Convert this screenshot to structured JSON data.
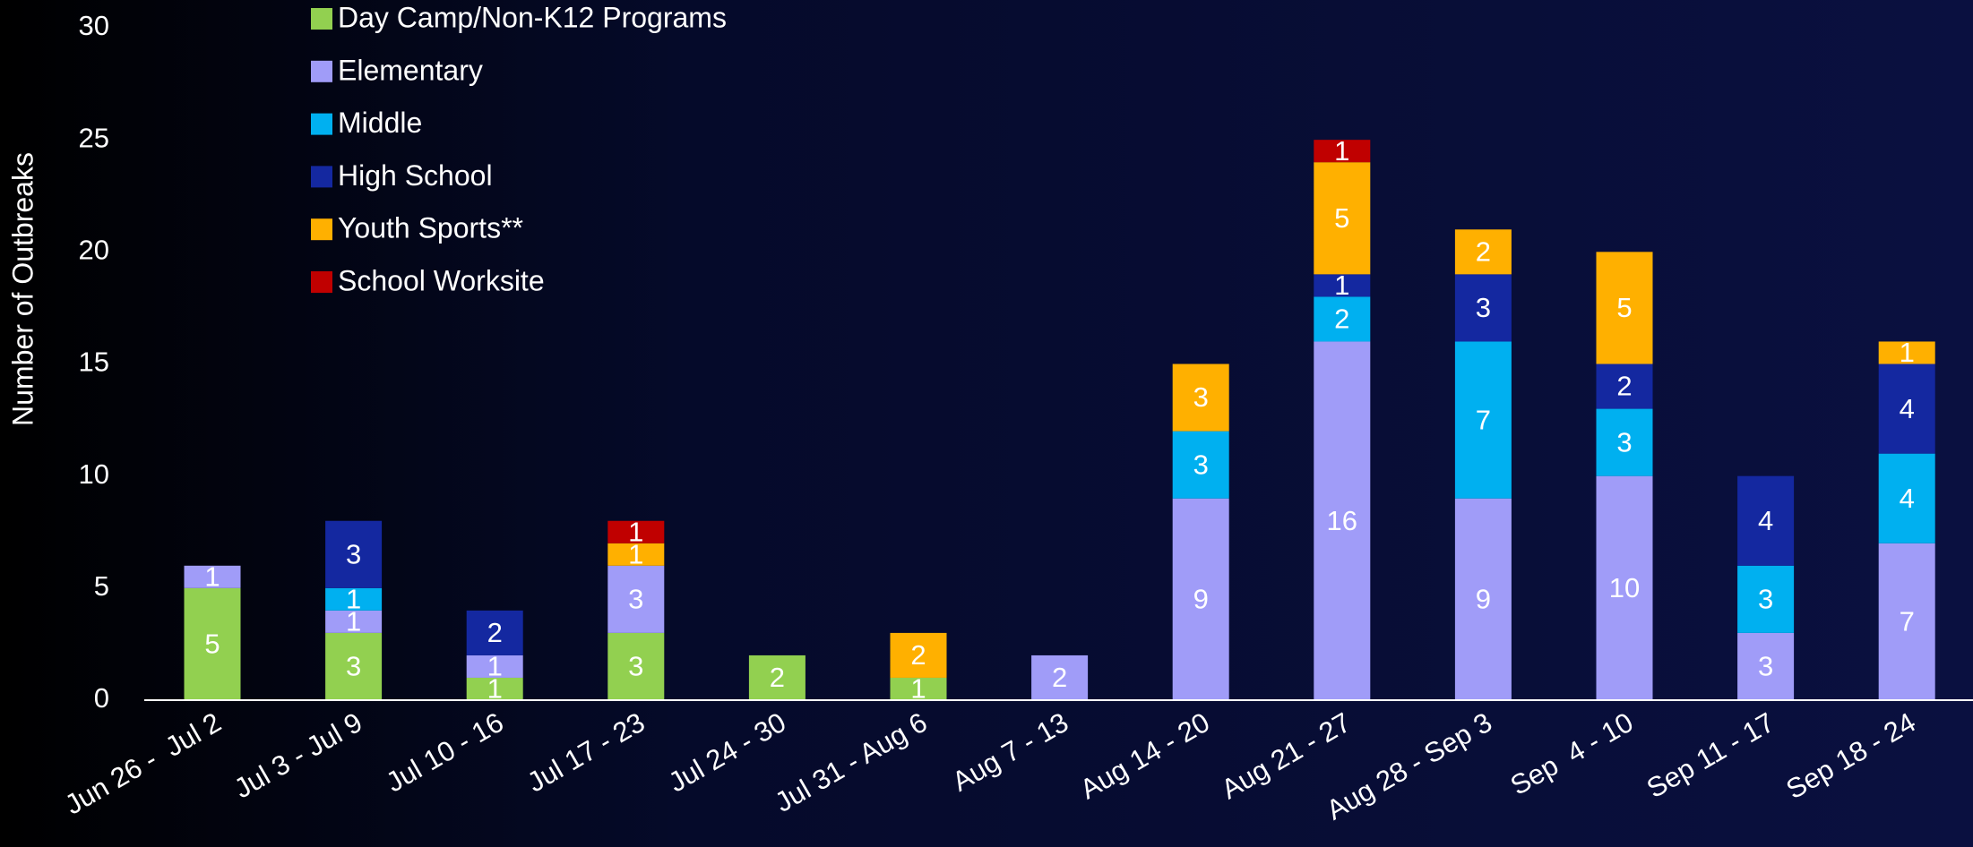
{
  "chart_data": {
    "type": "stacked_bar",
    "y_axis_label": "Number of Outbreaks",
    "categories": [
      "Jun 26 -  Jul 2",
      "Jul 3 - Jul 9",
      "Jul 10 - 16",
      "Jul 17 - 23",
      "Jul 24 - 30",
      "Jul 31 - Aug 6",
      "Aug 7 - 13",
      "Aug 14 - 20",
      "Aug 21 - 27",
      "Aug 28 - Sep 3",
      "Sep  4 - 10",
      "Sep 11 - 17",
      "Sep 18 - 24"
    ],
    "series": [
      {
        "name": "Day Camp/Non-K12 Programs",
        "color": "#92d050",
        "values": [
          5,
          3,
          1,
          3,
          2,
          1,
          0,
          0,
          0,
          0,
          0,
          0,
          0
        ]
      },
      {
        "name": "Elementary",
        "color": "#a09cf8",
        "values": [
          1,
          1,
          1,
          3,
          0,
          0,
          2,
          9,
          16,
          9,
          10,
          3,
          7
        ]
      },
      {
        "name": "Middle",
        "color": "#00b0f0",
        "values": [
          0,
          1,
          0,
          0,
          0,
          0,
          0,
          3,
          2,
          7,
          3,
          3,
          4
        ]
      },
      {
        "name": "High School",
        "color": "#1428a0",
        "values": [
          0,
          3,
          2,
          0,
          0,
          0,
          0,
          0,
          1,
          3,
          2,
          4,
          4
        ]
      },
      {
        "name": "Youth Sports**",
        "color": "#ffb000",
        "values": [
          0,
          0,
          0,
          1,
          0,
          2,
          0,
          3,
          5,
          2,
          5,
          0,
          1
        ]
      },
      {
        "name": "School Worksite",
        "color": "#c00000",
        "values": [
          0,
          0,
          0,
          1,
          0,
          0,
          0,
          0,
          1,
          0,
          0,
          0,
          0
        ]
      }
    ],
    "ylim": [
      0,
      30
    ],
    "yticks": [
      0,
      5,
      10,
      15,
      20,
      25,
      30
    ],
    "grid": false,
    "legend": "top-left"
  }
}
